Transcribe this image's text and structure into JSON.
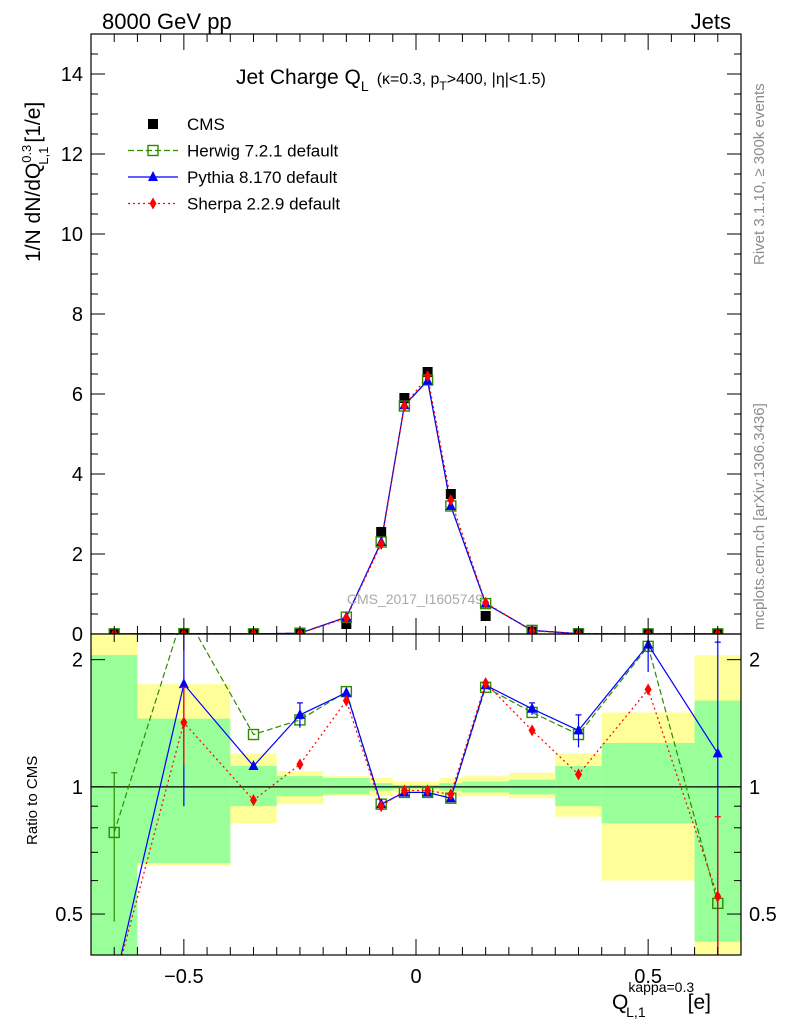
{
  "chart_data": {
    "type": "line",
    "header": {
      "left": "8000 GeV pp",
      "right": "Jets"
    },
    "title_main": "Jet Charge Q",
    "title_sub": "L",
    "title_cut": "(κ=0.3, p",
    "title_cut_sub": "T",
    "title_cut_rest": ">400, |η|<1.5)",
    "ylabel": "1/N dN/dQ",
    "ylabel_sup": "0.3",
    "ylabel_sub": "L,1",
    "ylabel_unit": "[1/e]",
    "ratio_ylabel": "Ratio to CMS",
    "xlabel": "Q",
    "xlabel_sup": "kappa=0.3",
    "xlabel_sub": "L,1",
    "xlabel_unit": "[e]",
    "side_top": "Rivet 3.1.10, ≥ 300k events",
    "side_bottom": "mcplots.cern.ch [arXiv:1306.3436]",
    "watermark": "CMS_2017_I1605749",
    "xlim": [
      -0.7,
      0.7
    ],
    "ylim": [
      0,
      15
    ],
    "ratio_ylim": [
      0.4,
      2.3
    ],
    "ratio_log": true,
    "x_ticks": [
      -0.5,
      0,
      0.5
    ],
    "x_tick_labels": [
      "−0.5",
      "0",
      "0.5"
    ],
    "y_ticks": [
      0,
      2,
      4,
      6,
      8,
      10,
      12,
      14
    ],
    "y_tick_labels": [
      "0",
      "2",
      "4",
      "6",
      "8",
      "10",
      "12",
      "14"
    ],
    "ratio_ticks": [
      0.5,
      1,
      2
    ],
    "ratio_tick_labels": [
      "0.5",
      "1",
      "2"
    ],
    "bin_edges": [
      -0.7,
      -0.6,
      -0.4,
      -0.3,
      -0.2,
      -0.1,
      -0.05,
      0,
      0.05,
      0.1,
      0.2,
      0.3,
      0.4,
      0.6,
      0.7
    ],
    "x": [
      -0.65,
      -0.5,
      -0.35,
      -0.25,
      -0.15,
      -0.075,
      -0.025,
      0.025,
      0.075,
      0.15,
      0.25,
      0.35,
      0.5,
      0.65
    ],
    "data": {
      "name": "CMS",
      "color": "#000000",
      "values": [
        0.005,
        0.004,
        0.004,
        0.015,
        0.25,
        2.55,
        5.9,
        6.55,
        3.5,
        0.45,
        0.06,
        0.005,
        0.002,
        0.008
      ]
    },
    "band_outer": [
      2.5,
      1.75,
      1.2,
      1.09,
      1.06,
      1.05,
      1.03,
      1.03,
      1.05,
      1.06,
      1.08,
      1.2,
      1.5,
      2.05
    ],
    "band_outer_low": [
      0.38,
      0.65,
      0.82,
      0.91,
      0.95,
      0.95,
      0.97,
      0.97,
      0.95,
      0.95,
      0.94,
      0.85,
      0.6,
      0.38
    ],
    "band_inner": [
      2.05,
      1.45,
      1.12,
      1.06,
      1.05,
      1.02,
      1.01,
      1.01,
      1.02,
      1.03,
      1.04,
      1.12,
      1.27,
      1.6
    ],
    "band_inner_low": [
      0.38,
      0.66,
      0.9,
      0.95,
      0.96,
      0.98,
      0.99,
      0.99,
      0.98,
      0.97,
      0.96,
      0.9,
      0.82,
      0.43
    ],
    "series": [
      {
        "name": "Herwig 7.2.1 default",
        "color": "#2e8b00",
        "style": "dashed",
        "marker": "open-square",
        "values": [
          0.004,
          0.01,
          0.005,
          0.02,
          0.42,
          2.3,
          5.7,
          6.35,
          3.2,
          0.76,
          0.09,
          0.008,
          0.004,
          0.004
        ],
        "ratio": [
          0.78,
          2.6,
          1.33,
          1.44,
          1.68,
          0.91,
          0.97,
          0.97,
          0.94,
          1.72,
          1.5,
          1.33,
          2.15,
          0.53
        ],
        "ratio_err": [
          0.3,
          0,
          0,
          0,
          0,
          0,
          0,
          0,
          0,
          0,
          0,
          0,
          0,
          0
        ]
      },
      {
        "name": "Pythia 8.170 default",
        "color": "#0000ff",
        "style": "solid",
        "marker": "triangle",
        "values": [
          0.004,
          0.006,
          0.005,
          0.02,
          0.42,
          2.3,
          5.72,
          6.33,
          3.2,
          0.76,
          0.09,
          0.008,
          0.004,
          0.004
        ],
        "ratio": [
          0.3,
          1.75,
          1.12,
          1.48,
          1.67,
          0.91,
          0.97,
          0.97,
          0.94,
          1.74,
          1.53,
          1.36,
          2.17,
          1.2
        ],
        "ratio_err": [
          0,
          0.85,
          0,
          0.1,
          0,
          0,
          0,
          0,
          0,
          0,
          0.05,
          0.12,
          0.3,
          1.0
        ]
      },
      {
        "name": "Sherpa 2.2.9 default",
        "color": "#ff0000",
        "style": "dotted",
        "marker": "diamond",
        "values": [
          0.004,
          0.006,
          0.004,
          0.015,
          0.4,
          2.25,
          5.7,
          6.45,
          3.35,
          0.78,
          0.08,
          0.006,
          0.003,
          0.005
        ],
        "ratio": [
          0.1,
          1.42,
          0.93,
          1.13,
          1.6,
          0.9,
          0.98,
          0.98,
          0.96,
          1.76,
          1.36,
          1.07,
          1.7,
          0.55
        ],
        "ratio_err": [
          0,
          0.3,
          0,
          0,
          0,
          0,
          0,
          0,
          0,
          0,
          0,
          0,
          0,
          0.3
        ]
      }
    ]
  },
  "colors": {
    "band_outer": "#ffff99",
    "band_inner": "#99ff99",
    "cms": "#000000",
    "herwig": "#2e8b00",
    "pythia": "#0000ff",
    "sherpa": "#ff0000"
  }
}
